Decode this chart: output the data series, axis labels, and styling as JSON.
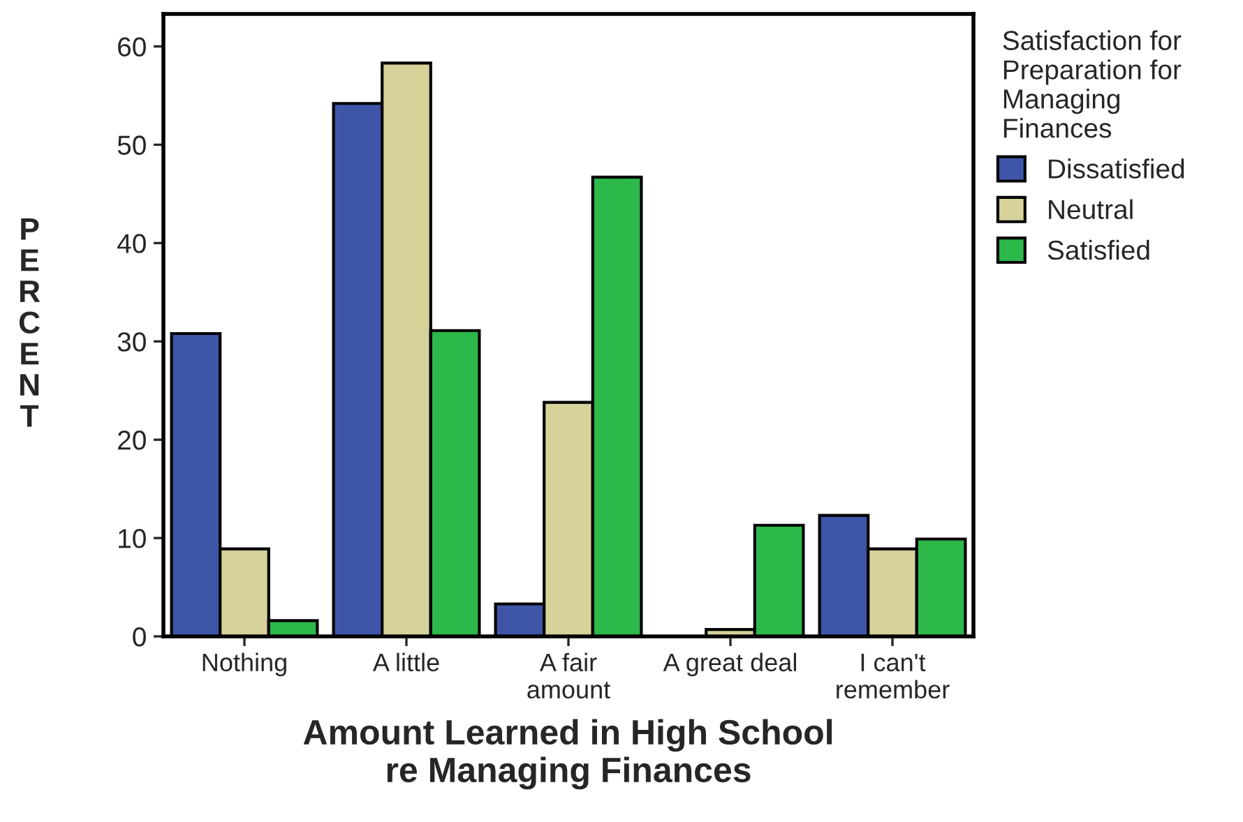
{
  "chart_data": {
    "type": "bar",
    "xlabel": "Amount Learned in High School\nre Managing Finances",
    "ylabel": "PERCENT",
    "legend_title": "Satisfaction for\nPreparation for\nManaging\nFinances",
    "categories": [
      "Nothing",
      "A little",
      "A fair\namount",
      "A great deal",
      "I can't\nremember"
    ],
    "series": [
      {
        "name": "Dissatisfied",
        "color": "#3f56a8",
        "values": [
          30.8,
          54.2,
          3.3,
          null,
          12.3
        ]
      },
      {
        "name": "Neutral",
        "color": "#d6d29a",
        "values": [
          8.9,
          58.3,
          23.8,
          0.7,
          8.9
        ]
      },
      {
        "name": "Satisfied",
        "color": "#2db84a",
        "values": [
          1.6,
          31.1,
          46.7,
          11.3,
          9.9
        ]
      }
    ],
    "ylim": [
      0,
      63.3
    ],
    "yticks": [
      0,
      10,
      20,
      30,
      40,
      50,
      60
    ],
    "grid": false,
    "legend": "right"
  }
}
